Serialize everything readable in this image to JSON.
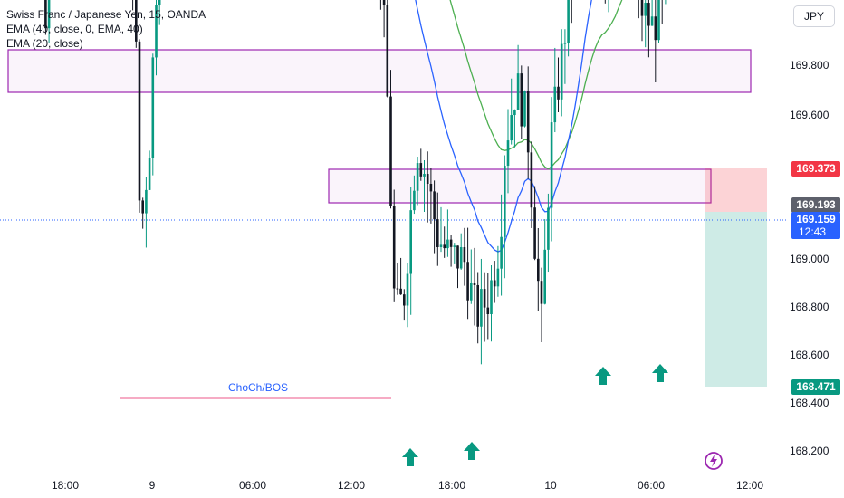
{
  "header": {
    "symbol_line": "Swiss Franc / Japanese Yen, 15, OANDA",
    "ema40_line": "EMA (40, close, 0, EMA, 40)",
    "ema20_line": "EMA (20, close)",
    "currency_button": "JPY"
  },
  "chart_data": {
    "type": "candlestick",
    "y_ticks": [
      "169.800",
      "169.600",
      "169.000",
      "168.800",
      "168.600",
      "168.400",
      "168.200"
    ],
    "x_ticks": [
      "18:00",
      "9",
      "06:00",
      "12:00",
      "18:00",
      "10",
      "06:00",
      "12:00"
    ],
    "ylim": [
      168.15,
      170.0
    ],
    "price_tags": [
      {
        "label": "169.373",
        "value": 169.373,
        "color": "#f23645"
      },
      {
        "label": "169.193",
        "value": 169.193,
        "color": "#5d606b"
      },
      {
        "label": "169.159",
        "sublabel": "12:43",
        "value": 169.159,
        "color": "#2962ff"
      },
      {
        "label": "168.471",
        "value": 168.471,
        "color": "#089981"
      }
    ],
    "zones": [
      {
        "name": "supply-zone-upper",
        "low": 169.7,
        "high": 169.87
      },
      {
        "name": "supply-zone-middle",
        "low": 169.225,
        "high": 169.365
      }
    ],
    "position": {
      "entry": 169.193,
      "stop": 169.373,
      "target": 168.471
    },
    "annotation": {
      "text": "ChoCh/BOS",
      "value": 168.415
    },
    "colors": {
      "up": "#089981",
      "down": "#131722",
      "ema20": "#2962ff",
      "ema40": "#4caf50",
      "zone": "#9c27b0",
      "choch": "#f48fb1"
    }
  }
}
